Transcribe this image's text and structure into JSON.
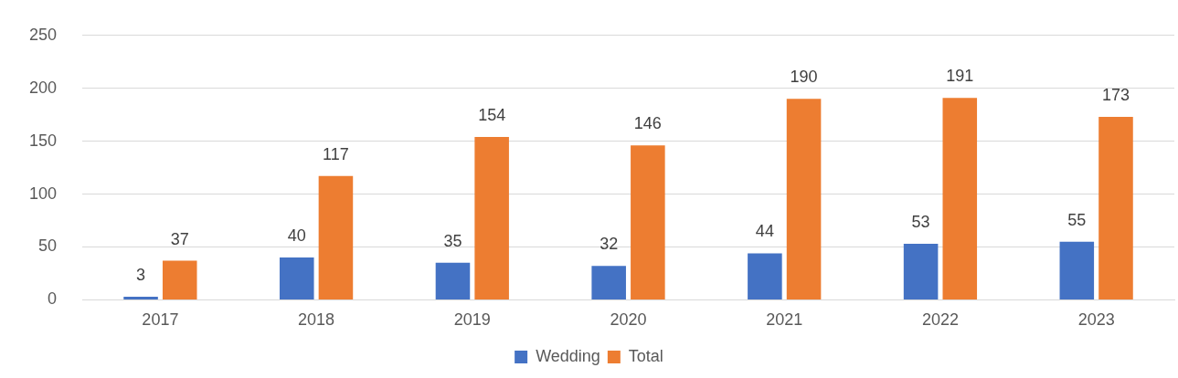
{
  "chart_data": {
    "type": "bar",
    "categories": [
      "2017",
      "2018",
      "2019",
      "2020",
      "2021",
      "2022",
      "2023"
    ],
    "series": [
      {
        "name": "Wedding",
        "color": "#4472c4",
        "values": [
          3,
          40,
          35,
          32,
          44,
          53,
          55
        ]
      },
      {
        "name": "Total",
        "color": "#ed7d31",
        "values": [
          37,
          117,
          154,
          146,
          190,
          191,
          173
        ]
      }
    ],
    "ylim": [
      0,
      250
    ],
    "yticks": [
      0,
      50,
      100,
      150,
      200,
      250
    ],
    "grid": "y",
    "legend": "bottom",
    "data_labels": true
  }
}
